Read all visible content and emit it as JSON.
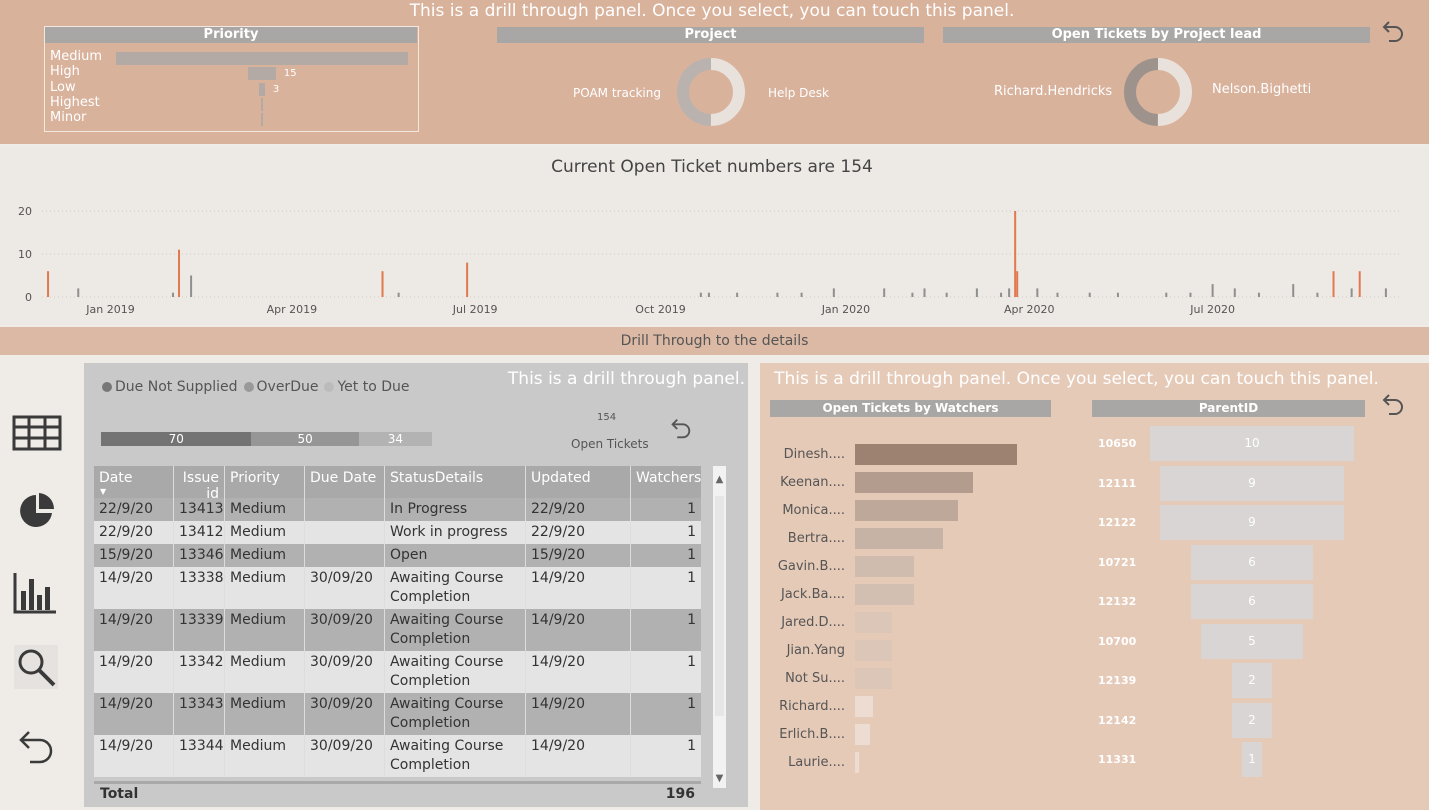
{
  "top": {
    "message": "This is a drill through panel. Once you select, you can touch this panel.",
    "priority": {
      "title": "Priority",
      "items": [
        {
          "label": "Medium",
          "value": null,
          "fraction": 1.0
        },
        {
          "label": "High",
          "value": "15",
          "fraction": 0.095
        },
        {
          "label": "Low",
          "value": "3",
          "fraction": 0.02
        },
        {
          "label": "Highest",
          "value": null,
          "fraction": 0.007
        },
        {
          "label": "Minor",
          "value": null,
          "fraction": 0.004
        }
      ]
    },
    "project": {
      "title": "Project",
      "left_label": "POAM tracking",
      "right_label": "Help Desk"
    },
    "project_lead": {
      "title": "Open Tickets by Project lead",
      "left_label": "Richard.Hendricks",
      "right_label": "Nelson.Bighetti"
    }
  },
  "timeline": {
    "title": "Current Open Ticket numbers are 154",
    "y_ticks": [
      "20",
      "10",
      "0"
    ],
    "x_ticks": [
      "Jan 2019",
      "Apr 2019",
      "Jul 2019",
      "Oct 2019",
      "Jan 2020",
      "Apr 2020",
      "Jul 2020"
    ]
  },
  "chart_data": {
    "type": "bar",
    "title": "Current Open Ticket numbers are 154",
    "ylim": [
      0,
      20
    ],
    "colors": {
      "highlight": "#e07a4e",
      "normal": "#8f8f8f"
    },
    "series": [
      {
        "points": [
          {
            "date": "2018-12-01",
            "value": 6,
            "hl": true
          },
          {
            "date": "2018-12-16",
            "value": 2,
            "hl": false
          },
          {
            "date": "2019-02-01",
            "value": 1,
            "hl": false
          },
          {
            "date": "2019-02-04",
            "value": 11,
            "hl": true
          },
          {
            "date": "2019-02-10",
            "value": 5,
            "hl": false
          },
          {
            "date": "2019-05-16",
            "value": 6,
            "hl": true
          },
          {
            "date": "2019-05-24",
            "value": 1,
            "hl": false
          },
          {
            "date": "2019-06-27",
            "value": 8,
            "hl": true
          },
          {
            "date": "2019-10-21",
            "value": 1,
            "hl": false
          },
          {
            "date": "2019-10-25",
            "value": 1,
            "hl": false
          },
          {
            "date": "2019-11-08",
            "value": 1,
            "hl": false
          },
          {
            "date": "2019-11-28",
            "value": 1,
            "hl": false
          },
          {
            "date": "2019-12-10",
            "value": 1,
            "hl": false
          },
          {
            "date": "2019-12-26",
            "value": 2,
            "hl": false
          },
          {
            "date": "2020-01-20",
            "value": 2,
            "hl": false
          },
          {
            "date": "2020-02-03",
            "value": 1,
            "hl": false
          },
          {
            "date": "2020-02-09",
            "value": 2,
            "hl": false
          },
          {
            "date": "2020-02-20",
            "value": 1,
            "hl": false
          },
          {
            "date": "2020-03-06",
            "value": 2,
            "hl": false
          },
          {
            "date": "2020-03-18",
            "value": 1,
            "hl": false
          },
          {
            "date": "2020-03-22",
            "value": 2,
            "hl": false
          },
          {
            "date": "2020-03-25",
            "value": 20,
            "hl": true
          },
          {
            "date": "2020-03-26",
            "value": 6,
            "hl": true
          },
          {
            "date": "2020-04-05",
            "value": 2,
            "hl": false
          },
          {
            "date": "2020-04-15",
            "value": 1,
            "hl": false
          },
          {
            "date": "2020-05-01",
            "value": 1,
            "hl": false
          },
          {
            "date": "2020-05-15",
            "value": 1,
            "hl": false
          },
          {
            "date": "2020-06-08",
            "value": 1,
            "hl": false
          },
          {
            "date": "2020-06-20",
            "value": 1,
            "hl": false
          },
          {
            "date": "2020-07-01",
            "value": 3,
            "hl": false
          },
          {
            "date": "2020-07-12",
            "value": 2,
            "hl": false
          },
          {
            "date": "2020-07-24",
            "value": 1,
            "hl": false
          },
          {
            "date": "2020-08-10",
            "value": 3,
            "hl": false
          },
          {
            "date": "2020-08-22",
            "value": 1,
            "hl": false
          },
          {
            "date": "2020-08-30",
            "value": 6,
            "hl": true
          },
          {
            "date": "2020-09-08",
            "value": 2,
            "hl": false
          },
          {
            "date": "2020-09-12",
            "value": 6,
            "hl": true
          },
          {
            "date": "2020-09-25",
            "value": 2,
            "hl": false
          }
        ]
      }
    ]
  },
  "drill_label": "Drill Through to the details",
  "table_panel": {
    "message": "This is a drill through panel.",
    "legend": [
      {
        "label": "Due Not Supplied",
        "color": "#777777"
      },
      {
        "label": "OverDue",
        "color": "#999999"
      },
      {
        "label": "Yet to Due",
        "color": "#bbbbbb"
      }
    ],
    "status_segments": [
      {
        "label": "70",
        "value": 70,
        "color": "#737373"
      },
      {
        "label": "50",
        "value": 50,
        "color": "#969696"
      },
      {
        "label": "34",
        "value": 34,
        "color": "#b3b3b3"
      }
    ],
    "open_count": "154",
    "open_label": "Open Tickets",
    "columns": [
      "Date",
      "Issue id",
      "Priority",
      "Due Date",
      "StatusDetails",
      "Updated",
      "Watchers"
    ],
    "rows": [
      [
        "22/9/20",
        "13413",
        "Medium",
        "",
        "In Progress",
        "22/9/20",
        "1"
      ],
      [
        "22/9/20",
        "13412",
        "Medium",
        "",
        "Work in progress",
        "22/9/20",
        "1"
      ],
      [
        "15/9/20",
        "13346",
        "Medium",
        "",
        "Open",
        "15/9/20",
        "1"
      ],
      [
        "14/9/20",
        "13338",
        "Medium",
        "30/09/20",
        "Awaiting Course Completion",
        "14/9/20",
        "1"
      ],
      [
        "14/9/20",
        "13339",
        "Medium",
        "30/09/20",
        "Awaiting Course Completion",
        "14/9/20",
        "1"
      ],
      [
        "14/9/20",
        "13342",
        "Medium",
        "30/09/20",
        "Awaiting Course Completion",
        "14/9/20",
        "1"
      ],
      [
        "14/9/20",
        "13343",
        "Medium",
        "30/09/20",
        "Awaiting Course Completion",
        "14/9/20",
        "1"
      ],
      [
        "14/9/20",
        "13344",
        "Medium",
        "30/09/20",
        "Awaiting Course Completion",
        "14/9/20",
        "1"
      ]
    ],
    "total_label": "Total",
    "total_value": "196"
  },
  "right_panel": {
    "message": "This is a drill through panel. Once you select, you can touch this panel.",
    "watchers_title": "Open Tickets by Watchers",
    "parent_title": "ParentID",
    "watchers": [
      {
        "label": "Dinesh....",
        "value": 11,
        "color": "#9d8171"
      },
      {
        "label": "Keenan....",
        "value": 8,
        "color": "#b39c8d"
      },
      {
        "label": "Monica....",
        "value": 7,
        "color": "#bda899"
      },
      {
        "label": "Bertra....",
        "value": 6,
        "color": "#c7b3a5"
      },
      {
        "label": "Gavin.B....",
        "value": 4,
        "color": "#d0bcae"
      },
      {
        "label": "Jack.Ba....",
        "value": 4,
        "color": "#d2bfb2"
      },
      {
        "label": "Jared.D....",
        "value": 2.5,
        "color": "#dcc6b8"
      },
      {
        "label": "Jian.Yang",
        "value": 2.5,
        "color": "#dcc6b8"
      },
      {
        "label": "Not Su....",
        "value": 2.5,
        "color": "#dcc6b8"
      },
      {
        "label": "Richard....",
        "value": 1.2,
        "color": "#ecdcd1"
      },
      {
        "label": "Erlich.B....",
        "value": 1,
        "color": "#ecdcd1"
      },
      {
        "label": "Laurie....",
        "value": 0.3,
        "color": "#ecdcd1"
      }
    ],
    "parents": [
      {
        "id": "10650",
        "value": "10"
      },
      {
        "id": "12111",
        "value": "9"
      },
      {
        "id": "12122",
        "value": "9"
      },
      {
        "id": "10721",
        "value": "6"
      },
      {
        "id": "12132",
        "value": "6"
      },
      {
        "id": "10700",
        "value": "5"
      },
      {
        "id": "12139",
        "value": "2"
      },
      {
        "id": "12142",
        "value": "2"
      },
      {
        "id": "11331",
        "value": "1"
      }
    ]
  }
}
